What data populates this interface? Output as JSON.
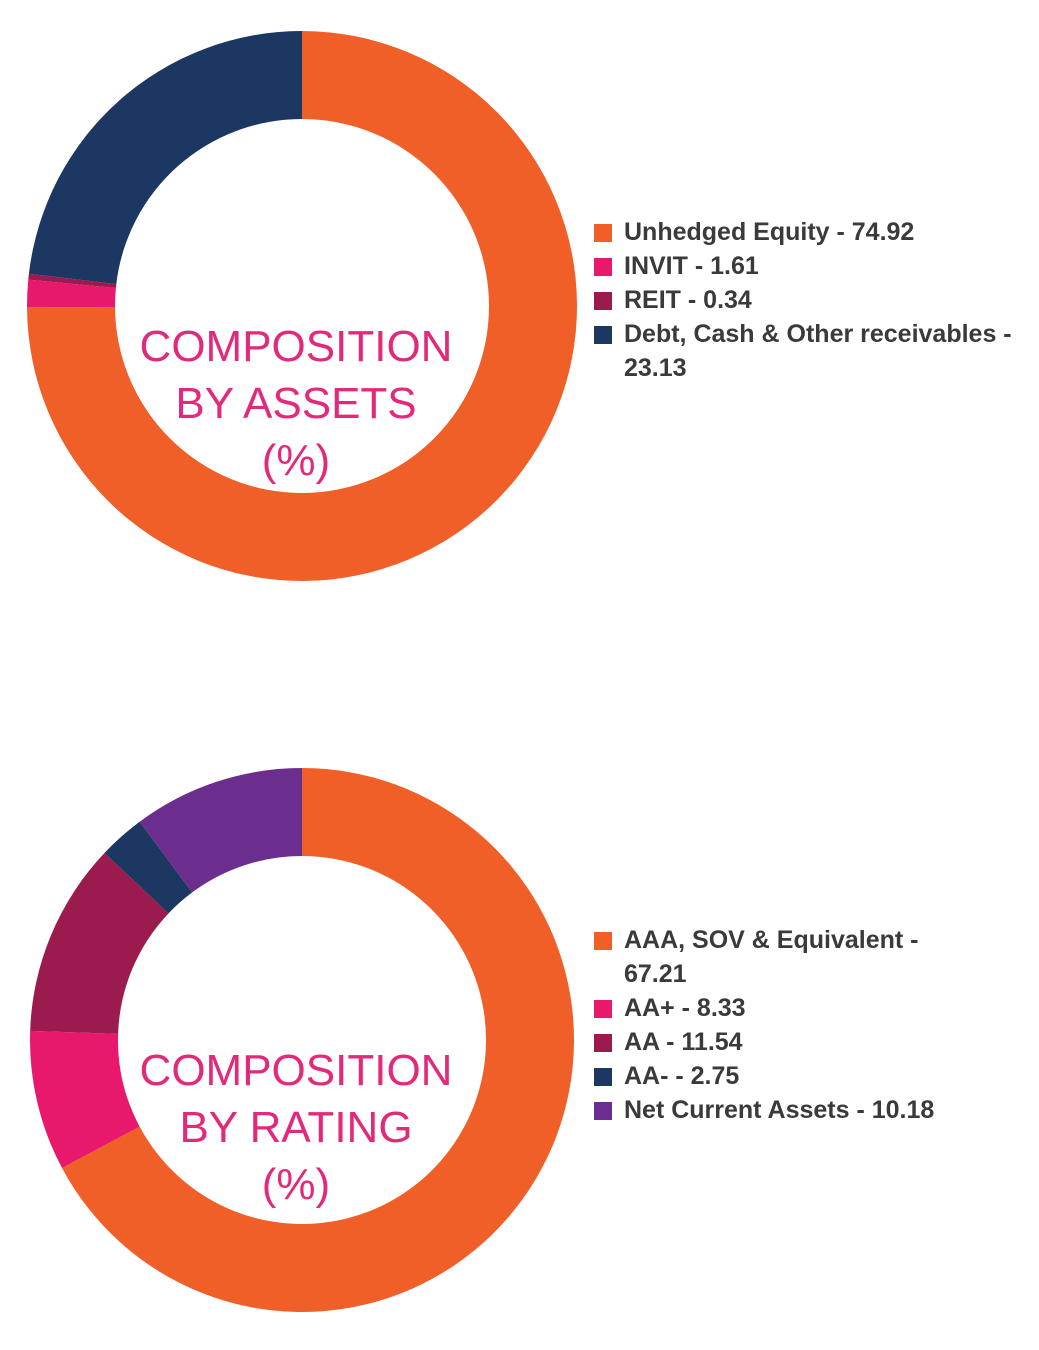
{
  "chart_data": [
    {
      "type": "pie",
      "title": "COMPOSITION BY ASSETS (%)",
      "center_lines": [
        "COMPOSITION",
        "BY ASSETS",
        "(%)"
      ],
      "slices": [
        {
          "label": "Unhedged Equity - 74.92",
          "value": 74.92,
          "color": "#f15f29"
        },
        {
          "label": "INVIT - 1.61",
          "value": 1.61,
          "color": "#e8196d"
        },
        {
          "label": "REIT - 0.34",
          "value": 0.34,
          "color": "#9b1b4e"
        },
        {
          "label": "Debt, Cash & Other receivables - 23.13",
          "value": 23.13,
          "color": "#1c3761"
        }
      ]
    },
    {
      "type": "pie",
      "title": "COMPOSITION BY RATING (%)",
      "center_lines": [
        "COMPOSITION",
        "BY RATING",
        "(%)"
      ],
      "slices": [
        {
          "label": "AAA, SOV & Equivalent - 67.21",
          "value": 67.21,
          "color": "#f15f29"
        },
        {
          "label": "AA+ - 8.33",
          "value": 8.33,
          "color": "#e8196d"
        },
        {
          "label": "AA - 11.54",
          "value": 11.54,
          "color": "#9b1b4e"
        },
        {
          "label": "AA- - 2.75",
          "value": 2.75,
          "color": "#1c3761"
        },
        {
          "label": "Net Current Assets - 10.18",
          "value": 10.18,
          "color": "#6b2d8e"
        }
      ]
    }
  ]
}
